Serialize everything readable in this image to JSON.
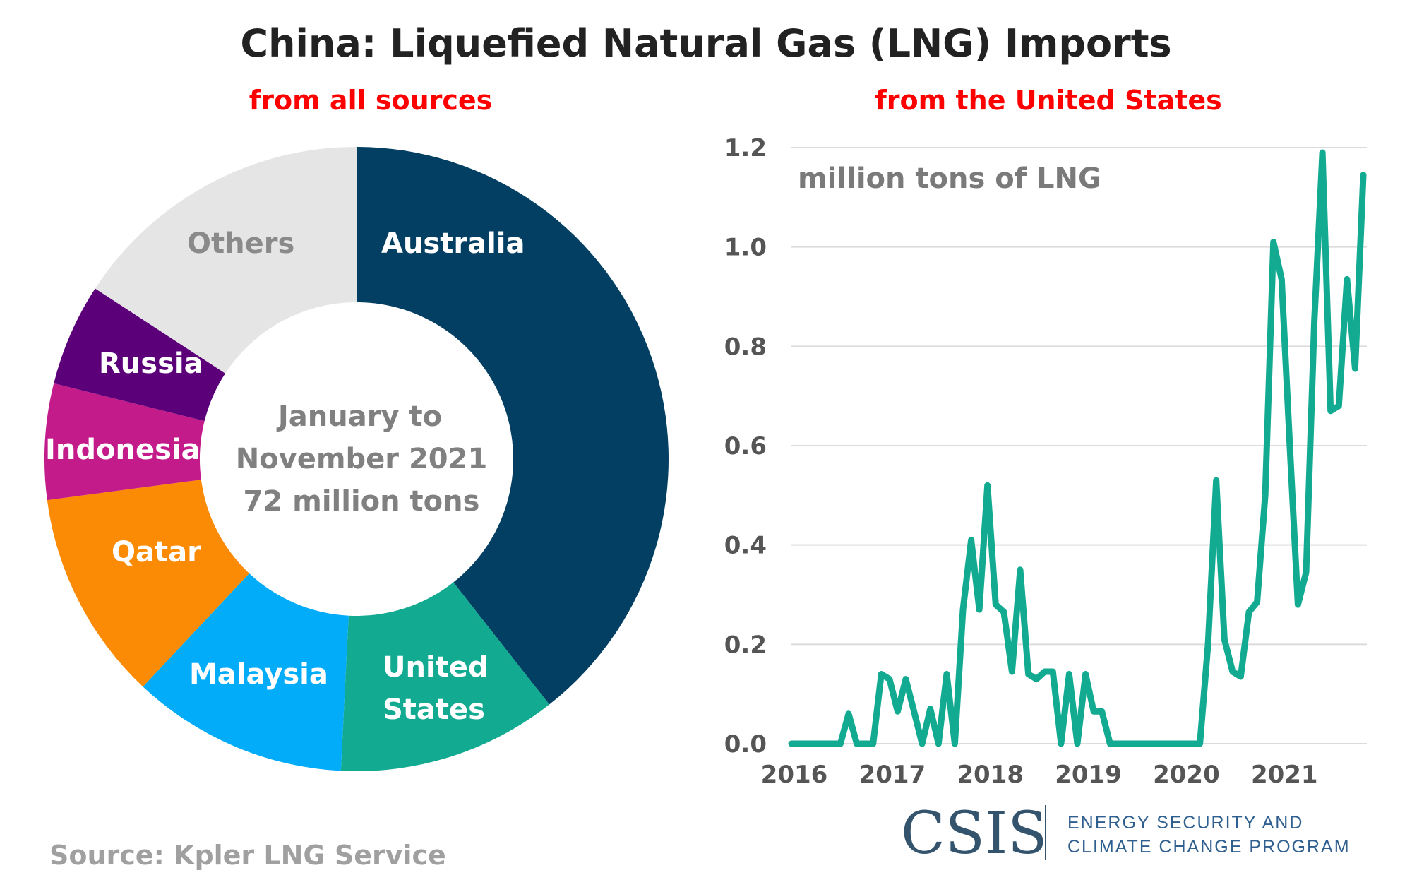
{
  "title": "China: Liquefied Natural Gas (LNG) Imports",
  "source": "Source: Kpler LNG Service",
  "logo": {
    "name": "CSIS",
    "program_line1": "ENERGY SECURITY AND",
    "program_line2": "CLIMATE CHANGE PROGRAM"
  },
  "chart_data": [
    {
      "type": "pie",
      "title": "from all sources",
      "center_text": [
        "January to",
        "November 2021",
        "72 million tons"
      ],
      "unit": "percent share (estimated)",
      "slices": [
        {
          "label": "Australia",
          "value": 39.4,
          "color": "#023f63"
        },
        {
          "label": "United States",
          "label_lines": [
            "United",
            "States"
          ],
          "value": 11.4,
          "color": "#12aa91"
        },
        {
          "label": "Malaysia",
          "value": 11.2,
          "color": "#02acf8"
        },
        {
          "label": "Qatar",
          "value": 10.9,
          "color": "#fb8a04"
        },
        {
          "label": "Indonesia",
          "value": 6.0,
          "color": "#c41b8b"
        },
        {
          "label": "Russia",
          "value": 5.3,
          "color": "#5c007a"
        },
        {
          "label": "Others",
          "value": 15.8,
          "color": "#e5e5e5",
          "label_color": "#8a8a8a"
        }
      ]
    },
    {
      "type": "line",
      "title": "from the United States",
      "ylabel": "million tons of LNG",
      "ylim": [
        0,
        1.2
      ],
      "yticks": [
        "0.0",
        "0.2",
        "0.4",
        "0.6",
        "0.8",
        "1.0",
        "1.2"
      ],
      "xticks": [
        "2016",
        "2017",
        "2018",
        "2019",
        "2020",
        "2021"
      ],
      "x_start": "2016-01",
      "x_frequency": "monthly",
      "grid": true,
      "series": [
        {
          "name": "LNG imports from the United States",
          "color": "#12aa91",
          "values": [
            0,
            0,
            0,
            0,
            0,
            0,
            0,
            0.06,
            0,
            0,
            0,
            0.14,
            0.13,
            0.065,
            0.13,
            0.065,
            0,
            0.07,
            0,
            0.14,
            0,
            0.27,
            0.41,
            0.27,
            0.52,
            0.28,
            0.265,
            0.145,
            0.35,
            0.14,
            0.13,
            0.145,
            0.145,
            0,
            0.14,
            0,
            0.14,
            0.065,
            0.065,
            0,
            0,
            0,
            0,
            0,
            0,
            0,
            0,
            0,
            0,
            0,
            0,
            0.2,
            0.53,
            0.21,
            0.145,
            0.135,
            0.265,
            0.285,
            0.5,
            1.01,
            0.935,
            0.6,
            0.28,
            0.345,
            0.85,
            1.19,
            0.67,
            0.68,
            0.935,
            0.755,
            1.145
          ]
        }
      ]
    }
  ]
}
